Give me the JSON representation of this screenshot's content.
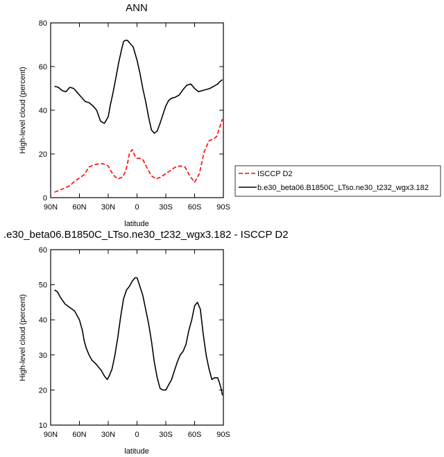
{
  "chart_data": [
    {
      "type": "line",
      "title": "ANN",
      "xlabel": "latitude",
      "ylabel": "High-level cloud (percent)",
      "xlim": [
        90,
        -90
      ],
      "ylim": [
        0,
        80
      ],
      "xticks": [
        90,
        60,
        30,
        0,
        -30,
        -60,
        -90
      ],
      "xtick_labels": [
        "90N",
        "60N",
        "30N",
        "0",
        "30S",
        "60S",
        "90S"
      ],
      "yticks": [
        0,
        20,
        40,
        60,
        80
      ],
      "ytick_labels": [
        "0",
        "20",
        "40",
        "60",
        "80"
      ],
      "legend_position": "right",
      "series": [
        {
          "name": "ISCCP D2",
          "color": "#ff0000",
          "dash": "dashed",
          "x": [
            86,
            80,
            75,
            70,
            65,
            60,
            55,
            50,
            45,
            40,
            35,
            30,
            25,
            20,
            15,
            12,
            10,
            8,
            5,
            2,
            0,
            -3,
            -6,
            -10,
            -15,
            -20,
            -25,
            -30,
            -35,
            -40,
            -45,
            -50,
            -55,
            -60,
            -65,
            -70,
            -75,
            -80,
            -83,
            -86,
            -89
          ],
          "y": [
            2.5,
            3.5,
            4.5,
            5.5,
            7.5,
            9,
            10.5,
            14,
            15,
            15.5,
            15.5,
            14.5,
            10.5,
            8.5,
            9.5,
            12,
            15.5,
            20,
            22,
            19,
            18,
            18,
            17.5,
            14,
            10,
            8.5,
            9.5,
            11,
            12.5,
            14,
            14.5,
            14,
            10,
            7,
            11,
            21,
            26,
            27,
            28,
            32,
            36
          ]
        },
        {
          "name": "b.e30_beta06.B1850C_LTso.ne30_t232_wgx3.182",
          "color": "#000000",
          "dash": "solid",
          "x": [
            86,
            82,
            78,
            74,
            70,
            66,
            62,
            58,
            54,
            50,
            46,
            42,
            38,
            34,
            30,
            28,
            25,
            22,
            19,
            16,
            14,
            12,
            10,
            8,
            6,
            4,
            2,
            0,
            -3,
            -6,
            -9,
            -12,
            -15,
            -18,
            -21,
            -24,
            -27,
            -30,
            -33,
            -36,
            -40,
            -44,
            -48,
            -52,
            -56,
            -60,
            -64,
            -68,
            -72,
            -76,
            -80,
            -84,
            -86,
            -89
          ],
          "y": [
            51,
            50.5,
            49,
            48.5,
            50.5,
            50,
            48,
            46,
            44,
            43.5,
            42,
            40,
            35,
            34,
            37,
            42,
            48,
            55,
            62,
            68,
            71.5,
            72,
            72,
            71,
            70,
            69,
            66,
            63,
            57,
            50,
            44,
            37,
            31,
            29.5,
            30.5,
            34,
            38,
            42,
            44.5,
            45.5,
            46,
            47,
            49.5,
            51.5,
            52,
            50,
            48.5,
            49,
            49.5,
            50,
            51,
            52,
            53,
            54
          ]
        }
      ]
    },
    {
      "type": "line",
      "title": ".e30_beta06.B1850C_LTso.ne30_t232_wgx3.182 - ISCCP D2",
      "xlabel": "latitude",
      "ylabel": "High-level cloud (percent)",
      "xlim": [
        90,
        -90
      ],
      "ylim": [
        10,
        60
      ],
      "xticks": [
        90,
        60,
        30,
        0,
        -30,
        -60,
        -90
      ],
      "xtick_labels": [
        "90N",
        "60N",
        "30N",
        "0",
        "30S",
        "60S",
        "90S"
      ],
      "yticks": [
        10,
        20,
        30,
        40,
        50,
        60
      ],
      "ytick_labels": [
        "10",
        "20",
        "30",
        "40",
        "50",
        "60"
      ],
      "series": [
        {
          "color": "#000000",
          "dash": "solid",
          "x": [
            86,
            83,
            80,
            75,
            70,
            65,
            60,
            57,
            55,
            53,
            50,
            47,
            43,
            40,
            37,
            34,
            31,
            29,
            26,
            23,
            20,
            17,
            14,
            11,
            8,
            5,
            2,
            0,
            -3,
            -6,
            -9,
            -12,
            -15,
            -18,
            -21,
            -24,
            -27,
            -30,
            -33,
            -36,
            -39,
            -42,
            -45,
            -48,
            -51,
            -54,
            -57,
            -60,
            -63,
            -66,
            -69,
            -72,
            -75,
            -78,
            -81,
            -84,
            -86,
            -88,
            -89
          ],
          "y": [
            48.5,
            48,
            46.5,
            44.5,
            43.5,
            42.5,
            40,
            37,
            34,
            32,
            30,
            28.5,
            27.5,
            26.5,
            25.5,
            24,
            23,
            24,
            26,
            30,
            35,
            41,
            46,
            48.5,
            49.5,
            51,
            52,
            52,
            49.5,
            47,
            43,
            39,
            34,
            28,
            23.5,
            20.5,
            20,
            20,
            21.5,
            23,
            25.5,
            28,
            30,
            31,
            33,
            37,
            40,
            44,
            45,
            43,
            36,
            30,
            26,
            23,
            23.5,
            23.5,
            22,
            20,
            18.5
          ]
        }
      ]
    }
  ]
}
